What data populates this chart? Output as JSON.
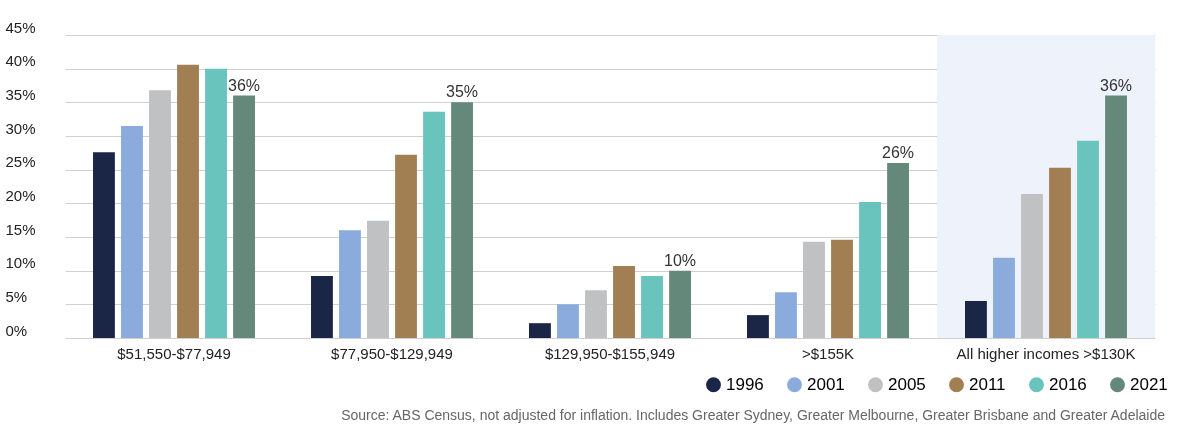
{
  "chart_data": {
    "type": "bar",
    "categories": [
      "$51,550-$77,949",
      "$77,950-$129,949",
      "$129,950-$155,949",
      ">$155K",
      "All higher incomes >$130K"
    ],
    "series": [
      {
        "name": "1996",
        "color": "#1b2646",
        "values": [
          27.6,
          9.2,
          2.2,
          3.4,
          5.5
        ]
      },
      {
        "name": "2001",
        "color": "#8aabdc",
        "values": [
          31.5,
          16.0,
          5.0,
          6.8,
          11.9
        ]
      },
      {
        "name": "2005",
        "color": "#c0c1c3",
        "values": [
          36.8,
          17.4,
          7.1,
          14.3,
          21.4
        ]
      },
      {
        "name": "2011",
        "color": "#a27f53",
        "values": [
          40.6,
          27.2,
          10.7,
          14.6,
          25.3
        ]
      },
      {
        "name": "2016",
        "color": "#68c4bd",
        "values": [
          40.0,
          33.6,
          9.2,
          20.2,
          29.3
        ]
      },
      {
        "name": "2021",
        "color": "#64897a",
        "values": [
          36,
          35,
          10,
          26,
          36
        ],
        "value_labels": [
          "36%",
          "35%",
          "10%",
          "26%",
          "36%"
        ]
      }
    ],
    "ylim": [
      0,
      45
    ],
    "yticks": [
      {
        "value": 0,
        "label": "0%"
      },
      {
        "value": 5,
        "label": "5%"
      },
      {
        "value": 10,
        "label": "10%"
      },
      {
        "value": 15,
        "label": "15%"
      },
      {
        "value": 20,
        "label": "20%"
      },
      {
        "value": 25,
        "label": "25%"
      },
      {
        "value": 30,
        "label": "30%"
      },
      {
        "value": 35,
        "label": "35%"
      },
      {
        "value": 40,
        "label": "40%"
      },
      {
        "value": 45,
        "label": "45%"
      }
    ],
    "bands": [
      {
        "axis": "x",
        "from": "All higher incomes >$130K",
        "to": "All higher incomes >$130K",
        "color": "#eef2fb"
      }
    ],
    "grid": "y",
    "legend": "bottom right",
    "marker": "circle",
    "annotations": [
      "Source: ABS Census, not adjusted for inflation. Includes Greater Sydney, Greater Melbourne, Greater Brisbane and Greater Adelaide"
    ]
  }
}
